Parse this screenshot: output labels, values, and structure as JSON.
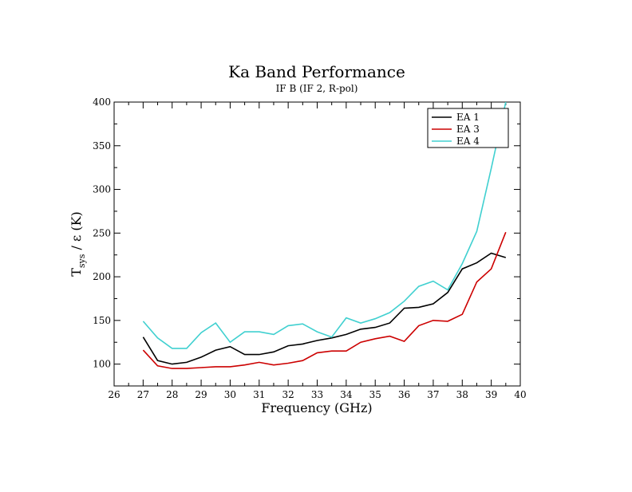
{
  "chart_data": {
    "type": "line",
    "title": "Ka Band Performance",
    "subtitle": "IF B  (IF 2, R-pol)",
    "xlabel": "Frequency (GHz)",
    "ylabel": {
      "main": "T",
      "sub": "sys",
      "rest": " / ε  (K)"
    },
    "xlim": [
      26,
      40
    ],
    "ylim": [
      75,
      400
    ],
    "x_ticks": [
      26,
      27,
      28,
      29,
      30,
      31,
      32,
      33,
      34,
      35,
      36,
      37,
      38,
      39,
      40
    ],
    "y_ticks": [
      100,
      150,
      200,
      250,
      300,
      350,
      400
    ],
    "grid": false,
    "legend_position": "top-right",
    "series": [
      {
        "name": "EA 1",
        "color": "#000000",
        "x": [
          27,
          27.5,
          28,
          28.5,
          29,
          29.5,
          30,
          30.5,
          31,
          31.5,
          32,
          32.5,
          33,
          33.5,
          34,
          34.5,
          35,
          35.5,
          36,
          36.5,
          37,
          37.5,
          38,
          38.5,
          39,
          39.5
        ],
        "y": [
          131,
          104,
          100,
          102,
          108,
          116,
          120,
          111,
          111,
          114,
          121,
          123,
          127,
          130,
          134,
          140,
          142,
          147,
          164,
          165,
          169,
          182,
          209,
          216,
          227,
          222
        ]
      },
      {
        "name": "EA 3",
        "color": "#cc0000",
        "x": [
          27,
          27.5,
          28,
          28.5,
          29,
          29.5,
          30,
          30.5,
          31,
          31.5,
          32,
          32.5,
          33,
          33.5,
          34,
          34.5,
          35,
          35.5,
          36,
          36.5,
          37,
          37.5,
          38,
          38.5,
          39,
          39.5
        ],
        "y": [
          116,
          98,
          95,
          95,
          96,
          97,
          97,
          99,
          102,
          99,
          101,
          104,
          113,
          115,
          115,
          125,
          129,
          132,
          126,
          144,
          150,
          149,
          157,
          194,
          209,
          251
        ]
      },
      {
        "name": "EA 4",
        "color": "#40d0d0",
        "x": [
          27,
          27.5,
          28,
          28.5,
          29,
          29.5,
          30,
          30.5,
          31,
          31.5,
          32,
          32.5,
          33,
          33.5,
          34,
          34.5,
          35,
          35.5,
          36,
          36.5,
          37,
          37.5,
          38,
          38.5,
          39,
          39.5
        ],
        "y": [
          149,
          130,
          118,
          118,
          136,
          147,
          125,
          137,
          137,
          134,
          144,
          146,
          137,
          131,
          153,
          147,
          152,
          159,
          172,
          189,
          195,
          185,
          215,
          252,
          324,
          400
        ]
      }
    ]
  }
}
